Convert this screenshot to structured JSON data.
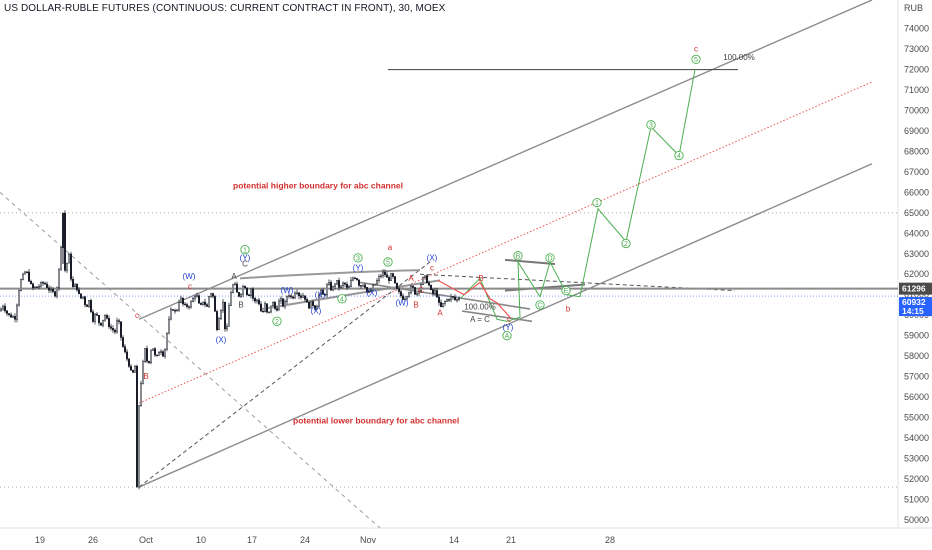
{
  "header": {
    "title": "US DOLLAR-RUBLE FUTURES (CONTINUOUS: CURRENT CONTRACT IN FRONT), 30, MOEX"
  },
  "colors": {
    "candle": "#131722",
    "channel": "#8c8c8c",
    "midline": "#ef5350",
    "projection": "#4caf50",
    "wave_red": "#d32f2f",
    "wave_blue": "#1e3fcf",
    "wave_green": "#4caf50",
    "price_tag_dark": "#4a4a4a",
    "price_tag_blue": "#2962ff"
  },
  "chart_data": {
    "type": "candlestick",
    "title": "US DOLLAR-RUBLE FUTURES (CONTINUOUS: CURRENT CONTRACT IN FRONT), 30, MOEX",
    "ylabel": "RUB",
    "ylim": [
      49600,
      75400
    ],
    "y_ticks": [
      50000,
      51000,
      52000,
      53000,
      54000,
      55000,
      56000,
      57000,
      58000,
      59000,
      60000,
      61000,
      62000,
      63000,
      64000,
      65000,
      66000,
      67000,
      68000,
      69000,
      70000,
      71000,
      72000,
      73000,
      74000
    ],
    "x_ticks": [
      "19",
      "26",
      "Oct",
      "10",
      "17",
      "24",
      "Nov",
      "14",
      "21",
      "28"
    ],
    "price_labels": [
      {
        "value": 61296,
        "text": "61296",
        "style": "dark"
      },
      {
        "value": 60932,
        "text": "60932",
        "style": "blue"
      },
      {
        "text": "14:15",
        "style": "blue"
      }
    ],
    "price_path": [
      [
        0,
        60200
      ],
      [
        3,
        60500
      ],
      [
        8,
        60000
      ],
      [
        15,
        59900
      ],
      [
        20,
        61600
      ],
      [
        26,
        62200
      ],
      [
        32,
        61300
      ],
      [
        38,
        61400
      ],
      [
        44,
        61600
      ],
      [
        50,
        61200
      ],
      [
        56,
        61000
      ],
      [
        60,
        62600
      ],
      [
        63,
        65000
      ],
      [
        65,
        62200
      ],
      [
        69,
        62900
      ],
      [
        72,
        61300
      ],
      [
        76,
        61500
      ],
      [
        80,
        60800
      ],
      [
        83,
        60900
      ],
      [
        86,
        60400
      ],
      [
        89,
        60700
      ],
      [
        93,
        59800
      ],
      [
        96,
        60100
      ],
      [
        100,
        59500
      ],
      [
        105,
        60000
      ],
      [
        110,
        59400
      ],
      [
        115,
        59200
      ],
      [
        118,
        59900
      ],
      [
        122,
        58600
      ],
      [
        126,
        58000
      ],
      [
        129,
        57600
      ],
      [
        132,
        57000
      ],
      [
        135,
        57500
      ],
      [
        137,
        51500
      ],
      [
        139,
        55600
      ],
      [
        142,
        57300
      ],
      [
        145,
        58300
      ],
      [
        148,
        57500
      ],
      [
        152,
        58600
      ],
      [
        156,
        57800
      ],
      [
        160,
        58400
      ],
      [
        164,
        58000
      ],
      [
        168,
        59500
      ],
      [
        172,
        60400
      ],
      [
        176,
        60100
      ],
      [
        180,
        60900
      ],
      [
        184,
        60400
      ],
      [
        190,
        60500
      ],
      [
        196,
        61100
      ],
      [
        200,
        60300
      ],
      [
        203,
        60700
      ],
      [
        207,
        60400
      ],
      [
        210,
        61200
      ],
      [
        213,
        60900
      ],
      [
        217,
        59400
      ],
      [
        220,
        60200
      ],
      [
        223,
        60600
      ],
      [
        226,
        58800
      ],
      [
        230,
        61000
      ],
      [
        234,
        61600
      ],
      [
        238,
        60900
      ],
      [
        242,
        61200
      ],
      [
        244,
        61600
      ],
      [
        248,
        60900
      ],
      [
        251,
        61300
      ],
      [
        254,
        60600
      ],
      [
        258,
        60800
      ],
      [
        262,
        60000
      ],
      [
        265,
        60500
      ],
      [
        268,
        59900
      ],
      [
        272,
        60700
      ],
      [
        276,
        60200
      ],
      [
        280,
        60800
      ],
      [
        284,
        60400
      ],
      [
        288,
        61100
      ],
      [
        292,
        60800
      ],
      [
        296,
        61300
      ],
      [
        300,
        60900
      ],
      [
        304,
        61000
      ],
      [
        308,
        60400
      ],
      [
        312,
        60600
      ],
      [
        316,
        60300
      ],
      [
        320,
        61200
      ],
      [
        324,
        60900
      ],
      [
        328,
        61600
      ],
      [
        332,
        61200
      ],
      [
        336,
        61700
      ],
      [
        340,
        61300
      ],
      [
        344,
        61600
      ],
      [
        348,
        61200
      ],
      [
        352,
        61800
      ],
      [
        356,
        61900
      ],
      [
        360,
        61400
      ],
      [
        364,
        61600
      ],
      [
        368,
        61000
      ],
      [
        372,
        61300
      ],
      [
        376,
        61600
      ],
      [
        380,
        61900
      ],
      [
        384,
        62100
      ],
      [
        388,
        61700
      ],
      [
        392,
        62000
      ],
      [
        396,
        61300
      ],
      [
        400,
        61000
      ],
      [
        404,
        60800
      ],
      [
        408,
        61100
      ],
      [
        412,
        61400
      ],
      [
        416,
        61000
      ],
      [
        420,
        61400
      ],
      [
        424,
        61900
      ],
      [
        428,
        61600
      ],
      [
        432,
        61000
      ],
      [
        436,
        61200
      ],
      [
        440,
        60300
      ],
      [
        444,
        60600
      ],
      [
        448,
        60800
      ],
      [
        452,
        60900
      ],
      [
        456,
        60700
      ],
      [
        460,
        60900
      ]
    ],
    "projection_path": [
      [
        460,
        60800
      ],
      [
        480,
        61800
      ],
      [
        497,
        59800
      ],
      [
        507,
        59700
      ],
      [
        520,
        59900
      ],
      [
        518,
        62600
      ],
      [
        540,
        60900
      ],
      [
        550,
        62600
      ],
      [
        567,
        61000
      ],
      [
        580,
        60900
      ],
      [
        598,
        65200
      ],
      [
        626,
        63600
      ],
      [
        651,
        69200
      ],
      [
        679,
        67800
      ],
      [
        695,
        72000
      ]
    ],
    "red_path": [
      [
        438,
        61700
      ],
      [
        464,
        61000
      ],
      [
        480,
        61600
      ],
      [
        490,
        60800
      ],
      [
        497,
        60600
      ],
      [
        510,
        59900
      ]
    ],
    "lines": {
      "upper_channel": [
        [
          139,
          59800
        ],
        [
          872,
          75400
        ]
      ],
      "lower_channel": [
        [
          139,
          51600
        ],
        [
          872,
          67400
        ]
      ],
      "midline": [
        [
          139,
          55700
        ],
        [
          872,
          71400
        ]
      ],
      "base_dashed": [
        [
          139,
          51600
        ],
        [
          430,
          62600
        ]
      ],
      "diag_dashed": [
        [
          0,
          66000
        ],
        [
          380,
          49600
        ]
      ],
      "horizontal_61296": 61296,
      "wedge_upper": [
        [
          240,
          61800
        ],
        [
          340,
          62100
        ],
        [
          420,
          62200
        ]
      ],
      "wedge_lower": [
        [
          262,
          60300
        ],
        [
          360,
          61100
        ],
        [
          440,
          61700
        ]
      ],
      "wave_y_channel": [
        [
          360,
          61600
        ],
        [
          530,
          60300
        ]
      ],
      "b_box_top": [
        [
          505,
          62700
        ],
        [
          555,
          62500
        ]
      ],
      "b_box_bottom": [
        [
          505,
          61200
        ],
        [
          585,
          61500
        ]
      ],
      "dashed_b_line": [
        [
          420,
          62000
        ],
        [
          735,
          61200
        ]
      ],
      "target_100": {
        "x1": 388,
        "x2": 738,
        "value": 72000
      },
      "ac_line": [
        [
          462,
          60200
        ],
        [
          532,
          59700
        ]
      ],
      "dotted_levels": [
        65000,
        51600
      ]
    },
    "labels": [
      {
        "x": 390,
        "y": 72600,
        "text": "100.00%",
        "color": "dark",
        "x_off": 351
      },
      {
        "x": 696,
        "y": 73000,
        "text": "c",
        "color": "red"
      },
      {
        "x": 696,
        "y": 72500,
        "text": "5",
        "color": "green",
        "circle": true
      },
      {
        "x": 651,
        "y": 69300,
        "text": "3",
        "color": "green",
        "circle": true
      },
      {
        "x": 679,
        "y": 67800,
        "text": "4",
        "color": "green",
        "circle": true
      },
      {
        "x": 597,
        "y": 65500,
        "text": "1",
        "color": "green",
        "circle": true
      },
      {
        "x": 626,
        "y": 63500,
        "text": "2",
        "color": "green",
        "circle": true
      },
      {
        "x": 518,
        "y": 62900,
        "text": "B",
        "color": "green",
        "circle": true
      },
      {
        "x": 550,
        "y": 62800,
        "text": "D",
        "color": "green",
        "circle": true
      },
      {
        "x": 566,
        "y": 61200,
        "text": "E",
        "color": "green",
        "circle": true
      },
      {
        "x": 540,
        "y": 60500,
        "text": "C",
        "color": "green",
        "circle": true
      },
      {
        "x": 568,
        "y": 60300,
        "text": "b",
        "color": "red"
      },
      {
        "x": 507,
        "y": 59000,
        "text": "A",
        "color": "green",
        "circle": true
      },
      {
        "x": 509,
        "y": 59800,
        "text": "c",
        "color": "red"
      },
      {
        "x": 508,
        "y": 59400,
        "text": "(Y)",
        "color": "blue"
      },
      {
        "x": 480,
        "y": 60400,
        "text": "100.00%",
        "color": "dark"
      },
      {
        "x": 480,
        "y": 59800,
        "text": "A = C",
        "color": "dark"
      },
      {
        "x": 390,
        "y": 63300,
        "text": "a",
        "color": "red"
      },
      {
        "x": 388,
        "y": 62600,
        "text": "5",
        "color": "green",
        "circle": true
      },
      {
        "x": 432,
        "y": 62800,
        "text": "(X)",
        "color": "blue"
      },
      {
        "x": 432,
        "y": 62300,
        "text": "c",
        "color": "red"
      },
      {
        "x": 358,
        "y": 62800,
        "text": "3",
        "color": "green",
        "circle": true
      },
      {
        "x": 358,
        "y": 62300,
        "text": "(Y)",
        "color": "blue"
      },
      {
        "x": 411,
        "y": 61800,
        "text": "A",
        "color": "red"
      },
      {
        "x": 421,
        "y": 61200,
        "text": "C",
        "color": "red"
      },
      {
        "x": 402,
        "y": 60600,
        "text": "(W)",
        "color": "blue"
      },
      {
        "x": 416,
        "y": 60500,
        "text": "B",
        "color": "red"
      },
      {
        "x": 440,
        "y": 60100,
        "text": "A",
        "color": "red"
      },
      {
        "x": 481,
        "y": 61800,
        "text": "B",
        "color": "red"
      },
      {
        "x": 372,
        "y": 61100,
        "text": "(X)",
        "color": "blue"
      },
      {
        "x": 342,
        "y": 60800,
        "text": "4",
        "color": "green",
        "circle": true
      },
      {
        "x": 320,
        "y": 61000,
        "text": "(X)",
        "color": "blue"
      },
      {
        "x": 287,
        "y": 61200,
        "text": "(W)",
        "color": "blue"
      },
      {
        "x": 316,
        "y": 60200,
        "text": "(X)",
        "color": "blue"
      },
      {
        "x": 277,
        "y": 59700,
        "text": "2",
        "color": "green",
        "circle": true
      },
      {
        "x": 245,
        "y": 63200,
        "text": "1",
        "color": "green",
        "circle": true
      },
      {
        "x": 245,
        "y": 62800,
        "text": "(Y)",
        "color": "blue"
      },
      {
        "x": 245,
        "y": 62500,
        "text": "C",
        "color": "dark"
      },
      {
        "x": 234,
        "y": 61900,
        "text": "A",
        "color": "dark"
      },
      {
        "x": 241,
        "y": 60500,
        "text": "B",
        "color": "dark"
      },
      {
        "x": 189,
        "y": 61900,
        "text": "(W)",
        "color": "blue"
      },
      {
        "x": 190,
        "y": 61400,
        "text": "c",
        "color": "red"
      },
      {
        "x": 221,
        "y": 58800,
        "text": "(X)",
        "color": "blue"
      },
      {
        "x": 146,
        "y": 57000,
        "text": "B",
        "color": "red"
      },
      {
        "x": 137,
        "y": 60000,
        "text": "c",
        "color": "red"
      }
    ],
    "annotations": [
      {
        "x": 233,
        "y": 66200,
        "text": "potential higher boundary for abc channel",
        "color": "red"
      },
      {
        "x": 293,
        "y": 54700,
        "text": "potential lower boundary for abc channel",
        "color": "red"
      }
    ]
  }
}
